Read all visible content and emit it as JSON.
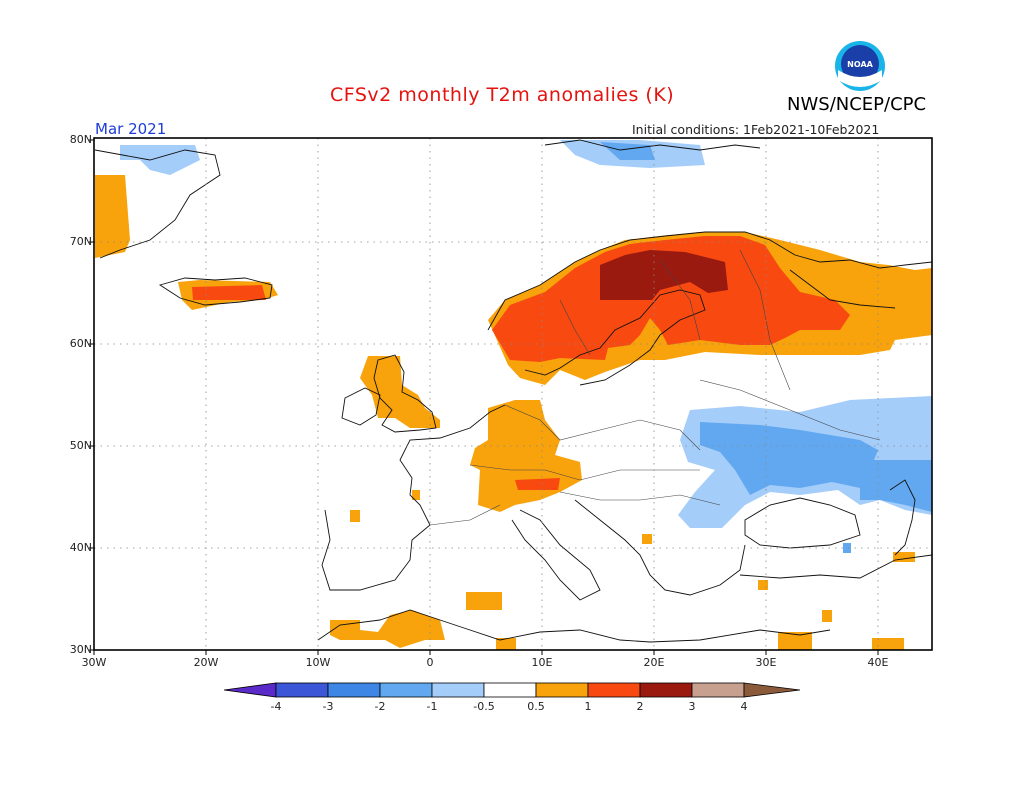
{
  "header": {
    "title": "CFSv2 monthly T2m anomalies (K)",
    "agency": "NWS/NCEP/CPC",
    "logo_text": "NOAA",
    "month": "Mar 2021",
    "initial_conditions": "Initial conditions: 1Feb2021-10Feb2021"
  },
  "axes": {
    "y_labels": [
      "80N",
      "70N",
      "60N",
      "50N",
      "40N",
      "30N"
    ],
    "x_labels": [
      "30W",
      "20W",
      "10W",
      "0",
      "10E",
      "20E",
      "30E",
      "40E"
    ]
  },
  "colorbar": {
    "labels": [
      "-4",
      "-3",
      "-2",
      "-1",
      "-0.5",
      "0.5",
      "1",
      "2",
      "3",
      "4"
    ],
    "colors": [
      "#5a2bc8",
      "#3b57d8",
      "#3d86e6",
      "#62a8f0",
      "#a4cdfa",
      "#ffffff",
      "#f8a20c",
      "#f84a10",
      "#9a1a10",
      "#c8a090",
      "#8a5a3a"
    ]
  },
  "anomaly_colors": {
    "warm1": "#f8a20c",
    "warm2": "#f84a10",
    "warm3": "#9a1a10",
    "cool1": "#a4cdfa",
    "cool2": "#62a8f0"
  }
}
